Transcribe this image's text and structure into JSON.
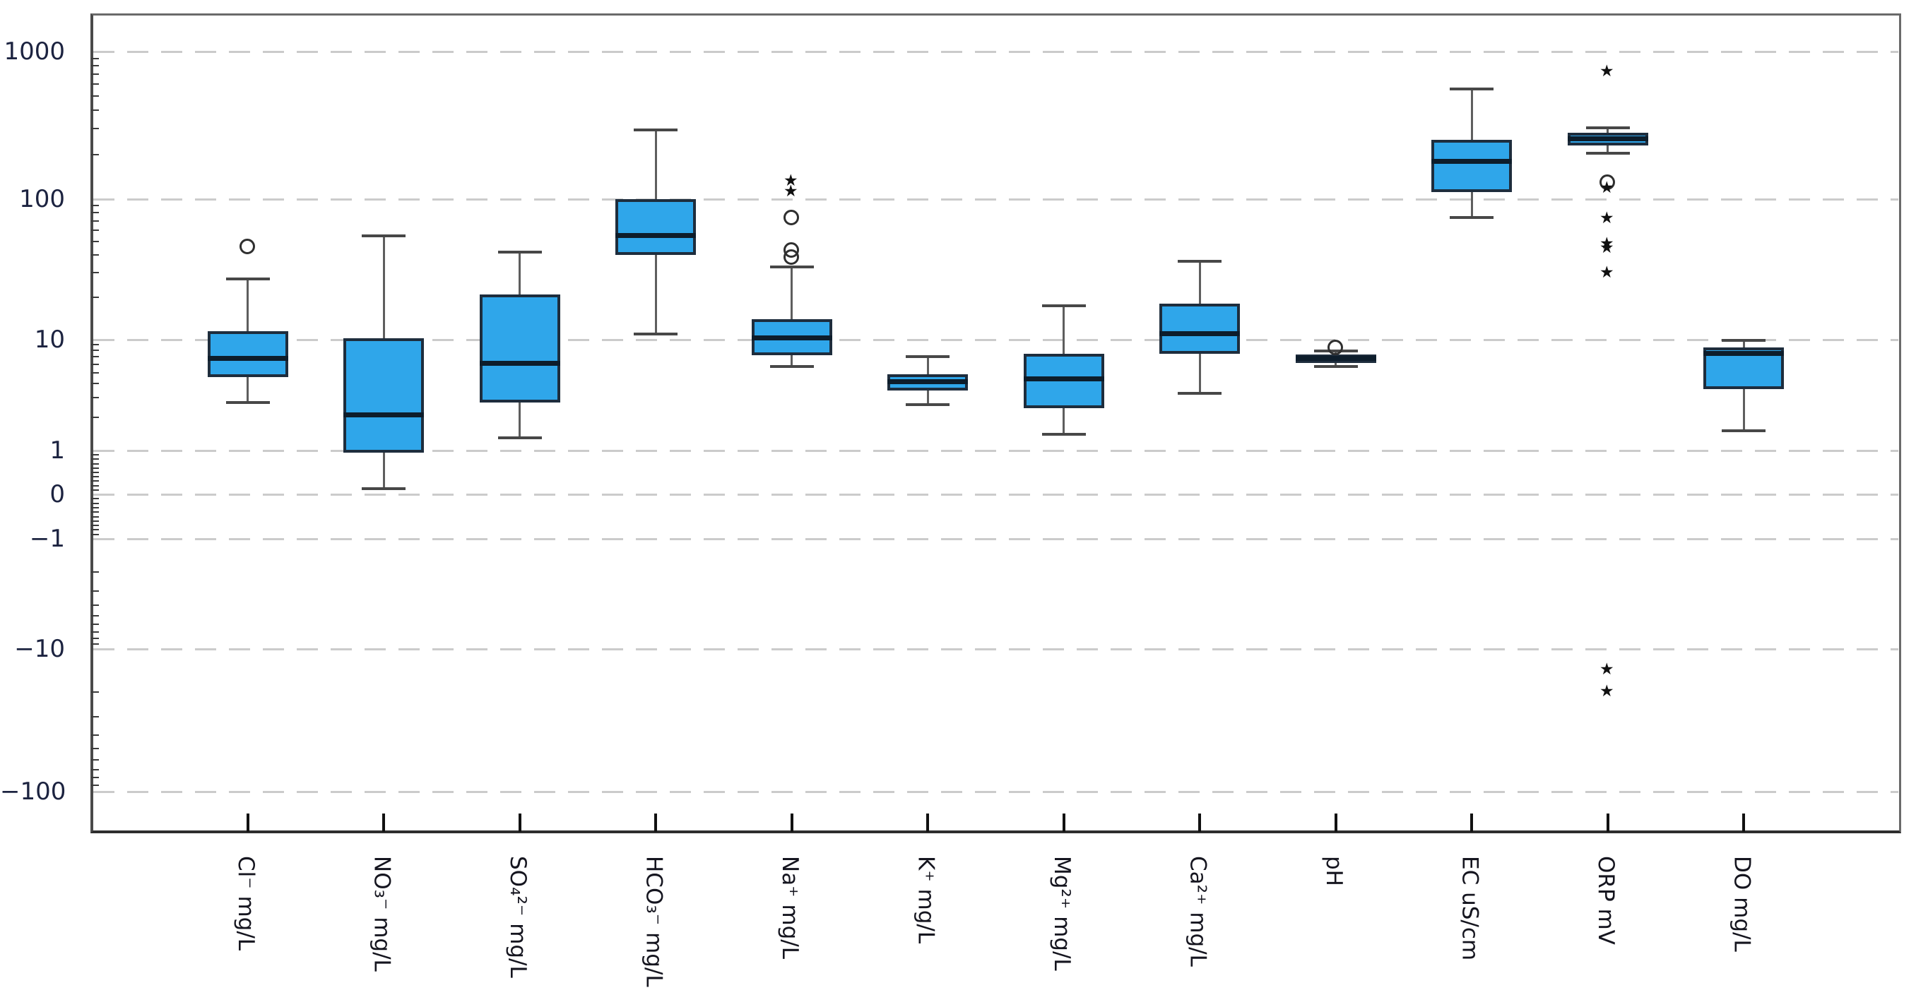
{
  "chart_data": {
    "type": "boxplot",
    "title": "",
    "xlabel": "",
    "ylabel": "",
    "legend": "none",
    "grid": "dashed horizontal at every labeled tick",
    "y_axis": {
      "scale": "symlog (log decades above 1 and below -1, linear between -1 and 1)",
      "tick_values": [
        1000,
        100,
        10,
        1,
        0,
        -1,
        -10,
        -100
      ],
      "tick_labels": [
        "1000",
        "100",
        "10",
        "1",
        "0",
        "−1",
        "−10",
        "−100"
      ],
      "minor_ticks": "log-spaced minor ticks within each decade"
    },
    "categories": [
      "Cl⁻ mg/L",
      "NO₃⁻ mg/L",
      "SO₄²⁻ mg/L",
      "HCO₃⁻ mg/L",
      "Na⁺ mg/L",
      "K⁺ mg/L",
      "Mg²⁺ mg/L",
      "Ca²⁺ mg/L",
      "pH",
      "EC uS/cm",
      "ORP mV",
      "DO mg/L"
    ],
    "series": [
      {
        "category": "Cl⁻ mg/L",
        "whisker_low": 2.7,
        "q1": 4.6,
        "median": 6.8,
        "q3": 11.5,
        "whisker_high": 27,
        "outliers_circle": [
          46
        ],
        "outliers_star": []
      },
      {
        "category": "NO₃⁻ mg/L",
        "whisker_low": 0.13,
        "q1": 0.95,
        "median": 2.1,
        "q3": 10.2,
        "whisker_high": 55,
        "outliers_circle": [],
        "outliers_star": []
      },
      {
        "category": "SO₄²⁻ mg/L",
        "whisker_low": 1.3,
        "q1": 2.7,
        "median": 6.1,
        "q3": 21,
        "whisker_high": 42,
        "outliers_circle": [],
        "outliers_star": []
      },
      {
        "category": "HCO₃⁻ mg/L",
        "whisker_low": 11,
        "q1": 40,
        "median": 55,
        "q3": 100,
        "whisker_high": 295,
        "outliers_circle": [],
        "outliers_star": []
      },
      {
        "category": "Na⁺ mg/L",
        "whisker_low": 5.7,
        "q1": 7.2,
        "median": 10.3,
        "q3": 14,
        "whisker_high": 33,
        "outliers_circle": [
          74,
          43,
          38.5
        ],
        "outliers_star": [
          133,
          112
        ]
      },
      {
        "category": "K⁺ mg/L",
        "whisker_low": 2.6,
        "q1": 3.5,
        "median": 4.2,
        "q3": 4.9,
        "whisker_high": 7.0,
        "outliers_circle": [],
        "outliers_star": []
      },
      {
        "category": "Mg²⁺ mg/L",
        "whisker_low": 1.4,
        "q1": 2.4,
        "median": 4.4,
        "q3": 7.5,
        "whisker_high": 17.5,
        "outliers_circle": [],
        "outliers_star": []
      },
      {
        "category": "Ca²⁺ mg/L",
        "whisker_low": 3.3,
        "q1": 7.5,
        "median": 11,
        "q3": 18,
        "whisker_high": 36,
        "outliers_circle": [],
        "outliers_star": []
      },
      {
        "category": "pH",
        "whisker_low": 5.7,
        "q1": 6.2,
        "median": 6.8,
        "q3": 7.3,
        "whisker_high": 7.9,
        "outliers_circle": [
          8.4
        ],
        "outliers_star": []
      },
      {
        "category": "EC uS/cm",
        "whisker_low": 74,
        "q1": 112,
        "median": 181,
        "q3": 253,
        "whisker_high": 560,
        "outliers_circle": [],
        "outliers_star": []
      },
      {
        "category": "ORP mV",
        "whisker_low": 205,
        "q1": 230,
        "median": 256,
        "q3": 283,
        "whisker_high": 305,
        "outliers_circle": [
          129
        ],
        "outliers_star": [
          730,
          118,
          73,
          48,
          45,
          30,
          -14,
          -20
        ]
      },
      {
        "category": "DO mg/L",
        "whisker_low": 1.5,
        "q1": 3.6,
        "median": 7.5,
        "q3": 8.5,
        "whisker_high": 9.8,
        "outliers_circle": [],
        "outliers_star": []
      }
    ]
  },
  "colors": {
    "box_fill": "#2FA6EA",
    "box_border": "#1e2d3d",
    "median_line": "#0d1d2b",
    "whisker": "#5e5e5e",
    "grid": "#cbcbcb",
    "frame": "#6a6a6a",
    "y_tick_label": "#1c2340",
    "x_label": "#15151f",
    "background": "#ffffff"
  }
}
